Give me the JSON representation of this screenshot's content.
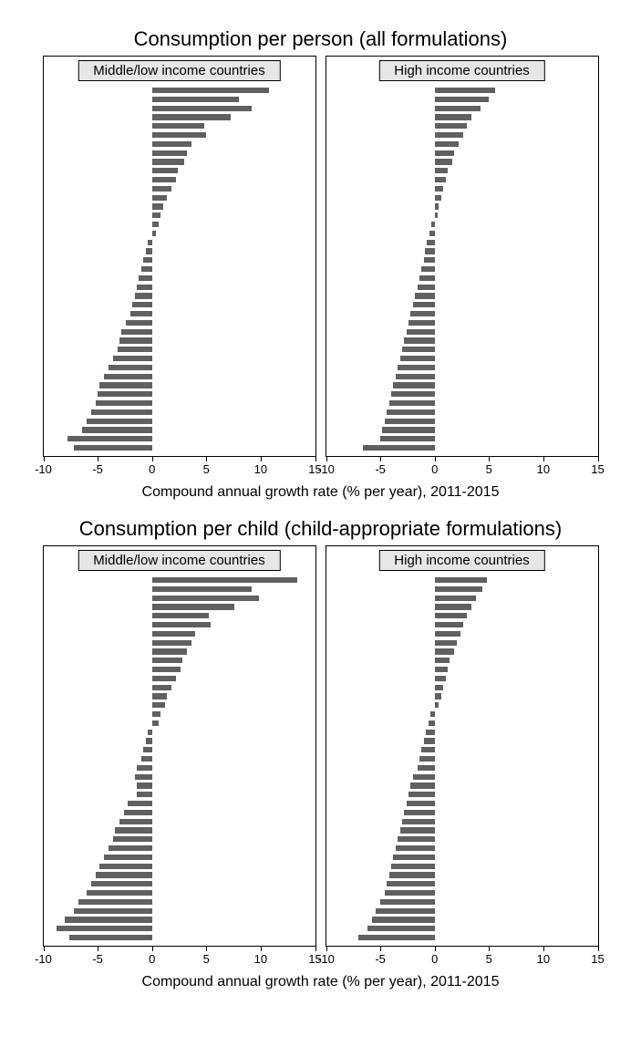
{
  "figure": {
    "background_color": "#ffffff",
    "bar_color": "#606060",
    "subtitle_bg": "#e6e6e6",
    "border_color": "#000000",
    "font_family": "Arial",
    "panel_title_fontsize": 22,
    "subtitle_fontsize": 15,
    "tick_label_fontsize": 13,
    "axis_title_fontsize": 16,
    "xlim": [
      -10,
      15
    ],
    "xticks": [
      -10,
      -5,
      0,
      5,
      10,
      15
    ],
    "subplot_width": 300,
    "subplot_height": 440,
    "plot_top_margin": 30,
    "bar_step": 9.8,
    "bar_height": 6.2,
    "x_axis_title": "Compound annual growth rate (% per year), 2011-2015",
    "panels": [
      {
        "title": "Consumption per person (all formulations)",
        "subplots": [
          {
            "subtitle": "Middle/low income countries",
            "values": [
              10.8,
              8.0,
              9.2,
              7.2,
              4.8,
              5.0,
              3.6,
              3.2,
              3.0,
              2.4,
              2.2,
              1.8,
              1.4,
              1.0,
              0.8,
              0.6,
              0.4,
              -0.4,
              -0.6,
              -0.8,
              -1.0,
              -1.2,
              -1.4,
              -1.6,
              -1.8,
              -2.0,
              -2.4,
              -2.8,
              -3.0,
              -3.2,
              -3.6,
              -4.0,
              -4.4,
              -4.8,
              -5.0,
              -5.2,
              -5.6,
              -6.0,
              -6.4,
              -7.8,
              -7.2
            ]
          },
          {
            "subtitle": "High income countries",
            "values": [
              5.6,
              5.0,
              4.2,
              3.4,
              3.0,
              2.6,
              2.2,
              1.8,
              1.6,
              1.2,
              1.0,
              0.8,
              0.6,
              0.4,
              0.3,
              -0.3,
              -0.5,
              -0.7,
              -0.9,
              -1.0,
              -1.2,
              -1.4,
              -1.6,
              -1.8,
              -2.0,
              -2.2,
              -2.4,
              -2.6,
              -2.8,
              -3.0,
              -3.2,
              -3.4,
              -3.6,
              -3.8,
              -4.0,
              -4.2,
              -4.4,
              -4.6,
              -4.8,
              -5.0,
              -6.6
            ]
          }
        ]
      },
      {
        "title": "Consumption per child (child-appropriate formulations)",
        "subplots": [
          {
            "subtitle": "Middle/low income countries",
            "values": [
              13.4,
              9.2,
              9.8,
              7.6,
              5.2,
              5.4,
              4.0,
              3.6,
              3.2,
              2.8,
              2.6,
              2.2,
              1.8,
              1.4,
              1.2,
              0.8,
              0.6,
              -0.4,
              -0.6,
              -0.8,
              -1.0,
              -1.4,
              -1.6,
              -1.4,
              -1.4,
              -2.2,
              -2.6,
              -3.0,
              -3.4,
              -3.6,
              -4.0,
              -4.4,
              -4.8,
              -5.2,
              -5.6,
              -6.0,
              -6.8,
              -7.2,
              -8.0,
              -8.8,
              -7.6
            ]
          },
          {
            "subtitle": "High income countries",
            "values": [
              4.8,
              4.4,
              3.8,
              3.4,
              3.0,
              2.6,
              2.4,
              2.0,
              1.8,
              1.4,
              1.2,
              1.0,
              0.8,
              0.6,
              0.4,
              -0.4,
              -0.6,
              -0.8,
              -1.0,
              -1.2,
              -1.4,
              -1.6,
              -2.0,
              -2.2,
              -2.4,
              -2.6,
              -2.8,
              -3.0,
              -3.2,
              -3.4,
              -3.6,
              -3.8,
              -4.0,
              -4.2,
              -4.4,
              -4.6,
              -5.0,
              -5.4,
              -5.8,
              -6.2,
              -7.0
            ]
          }
        ]
      }
    ]
  }
}
